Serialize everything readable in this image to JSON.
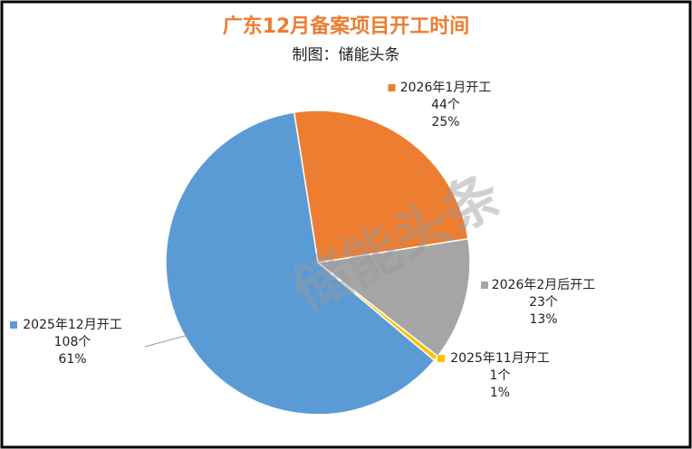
{
  "chart_data": {
    "type": "pie",
    "title": "广东12月备案项目开工时间",
    "subtitle": "制图：储能头条",
    "watermark": "储能头条",
    "categories": [
      "2026年1月开工",
      "2026年2月后开工",
      "2025年11月开工",
      "2025年12月开工"
    ],
    "values": [
      44,
      23,
      1,
      108
    ],
    "value_labels": [
      "44个",
      "23个",
      "1个",
      "108个"
    ],
    "percent_labels": [
      "25%",
      "13%",
      "1%",
      "61%"
    ],
    "colors": [
      "#ed7d31",
      "#a5a5a5",
      "#ffc000",
      "#5b9bd5"
    ]
  }
}
